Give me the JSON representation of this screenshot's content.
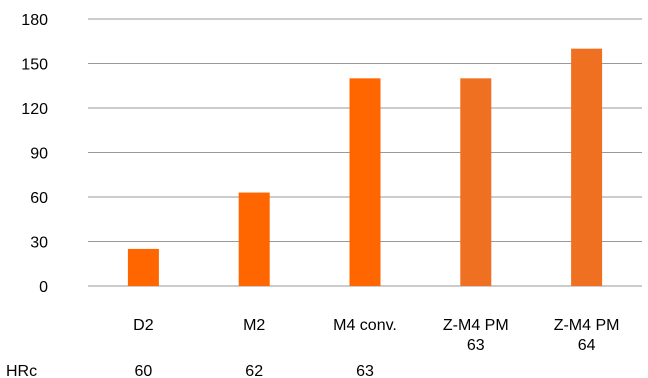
{
  "chart_data": {
    "type": "bar",
    "title": "",
    "xlabel": "",
    "ylabel": "",
    "ylim": [
      0,
      180
    ],
    "yticks": [
      0,
      30,
      60,
      90,
      120,
      150,
      180
    ],
    "grid": true,
    "legend": "none",
    "categories": [
      [
        "D2"
      ],
      [
        "M2"
      ],
      [
        "M4 conv."
      ],
      [
        "Z-M4 PM",
        "63"
      ],
      [
        "Z-M4 PM",
        "64"
      ]
    ],
    "values": [
      25,
      63,
      140,
      140,
      160
    ],
    "bar_colors": [
      "#ff6600",
      "#ff6600",
      "#ff6600",
      "#ee7020",
      "#ee7020"
    ],
    "gridline_color": "#999999",
    "hrc_row": {
      "label": "HRc",
      "values": [
        "60",
        "62",
        "63",
        "",
        ""
      ]
    }
  }
}
